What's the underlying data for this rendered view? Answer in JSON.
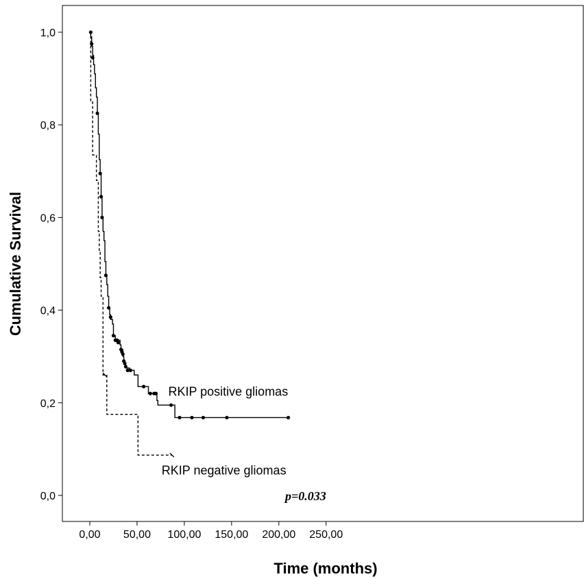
{
  "chart_data": {
    "type": "line",
    "title": "",
    "xlabel": "Time (months)",
    "ylabel": "Cumulative Survival",
    "xlim": [
      -7,
      253
    ],
    "ylim": [
      -0.055,
      1.06
    ],
    "x_ticks": [
      0,
      50,
      100,
      150,
      200,
      250
    ],
    "x_tick_labels": [
      "0,00",
      "50,00",
      "100,00",
      "150,00",
      "200,00",
      "250,00"
    ],
    "y_ticks": [
      0.0,
      0.2,
      0.4,
      0.6,
      0.8,
      1.0
    ],
    "y_tick_labels": [
      "0,0",
      "0,2",
      "0,4",
      "0,6",
      "0,8",
      "1,0"
    ],
    "grid": false,
    "annotations": [
      {
        "text": "RKIP positive gliomas",
        "x": 83,
        "y": 0.215
      },
      {
        "text": "RKIP negative gliomas",
        "x": 76,
        "y": 0.045
      },
      {
        "text": "p=0.033",
        "x": 250,
        "y": -0.01
      }
    ],
    "series": [
      {
        "style": "solid",
        "color": "#000000",
        "steps": [
          [
            0,
            1.0
          ],
          [
            1,
            0.99
          ],
          [
            2,
            0.97
          ],
          [
            3,
            0.95
          ],
          [
            4,
            0.93
          ],
          [
            5,
            0.91
          ],
          [
            6,
            0.88
          ],
          [
            7,
            0.86
          ],
          [
            8,
            0.825
          ],
          [
            9,
            0.78
          ],
          [
            10,
            0.725
          ],
          [
            11,
            0.695
          ],
          [
            12,
            0.645
          ],
          [
            13,
            0.6
          ],
          [
            14,
            0.57
          ],
          [
            15,
            0.55
          ],
          [
            16,
            0.505
          ],
          [
            17,
            0.475
          ],
          [
            18,
            0.455
          ],
          [
            19,
            0.43
          ],
          [
            20,
            0.405
          ],
          [
            21,
            0.39
          ],
          [
            22,
            0.38
          ],
          [
            24,
            0.37
          ],
          [
            25,
            0.345
          ],
          [
            27,
            0.335
          ],
          [
            32,
            0.325
          ],
          [
            33,
            0.315
          ],
          [
            35,
            0.3
          ],
          [
            36,
            0.285
          ],
          [
            38,
            0.275
          ],
          [
            42,
            0.27
          ],
          [
            47,
            0.26
          ],
          [
            51,
            0.235
          ],
          [
            62,
            0.22
          ],
          [
            71,
            0.205
          ],
          [
            72,
            0.195
          ],
          [
            90,
            0.168
          ],
          [
            210,
            0.168
          ]
        ],
        "censored": [
          [
            1,
            1.0
          ],
          [
            2,
            0.975
          ],
          [
            3,
            0.945
          ],
          [
            8,
            0.825
          ],
          [
            11,
            0.695
          ],
          [
            12,
            0.645
          ],
          [
            13,
            0.6
          ],
          [
            17,
            0.475
          ],
          [
            20,
            0.405
          ],
          [
            22,
            0.385
          ],
          [
            25,
            0.345
          ],
          [
            27,
            0.335
          ],
          [
            28,
            0.335
          ],
          [
            29,
            0.335
          ],
          [
            30,
            0.33
          ],
          [
            33,
            0.315
          ],
          [
            34,
            0.31
          ],
          [
            35,
            0.305
          ],
          [
            36,
            0.29
          ],
          [
            37,
            0.285
          ],
          [
            38,
            0.278
          ],
          [
            40,
            0.27
          ],
          [
            43,
            0.27
          ],
          [
            57,
            0.235
          ],
          [
            64,
            0.22
          ],
          [
            68,
            0.22
          ],
          [
            70,
            0.22
          ],
          [
            86,
            0.195
          ],
          [
            95,
            0.168
          ],
          [
            108,
            0.168
          ],
          [
            120,
            0.168
          ],
          [
            145,
            0.168
          ],
          [
            210,
            0.168
          ]
        ]
      },
      {
        "style": "dashed",
        "color": "#000000",
        "steps": [
          [
            0,
            1.0
          ],
          [
            1,
            0.85
          ],
          [
            3,
            0.735
          ],
          [
            7,
            0.68
          ],
          [
            9,
            0.57
          ],
          [
            10,
            0.525
          ],
          [
            11,
            0.47
          ],
          [
            12,
            0.43
          ],
          [
            14,
            0.26
          ],
          [
            18,
            0.175
          ],
          [
            51,
            0.087
          ],
          [
            87,
            0.087
          ]
        ],
        "censored": [
          [
            16,
            0.26
          ],
          [
            87,
            0.087
          ]
        ]
      }
    ]
  }
}
